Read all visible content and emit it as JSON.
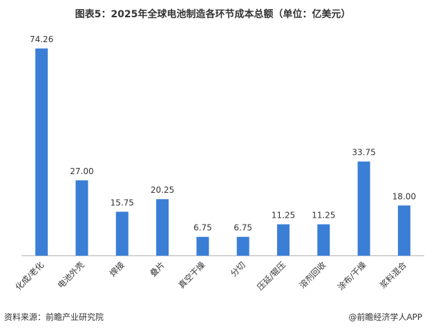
{
  "chart_data": {
    "type": "bar",
    "title": "图表5：2025年全球电池制造各环节成本总额（单位：亿美元）",
    "categories": [
      "化成/老化",
      "电池外壳",
      "焊接",
      "叠片",
      "真空干燥",
      "分切",
      "压延/辊压",
      "溶剂回收",
      "涂布/干燥",
      "浆料混合"
    ],
    "values": [
      74.26,
      27,
      15.75,
      20.25,
      6.75,
      6.75,
      11.25,
      11.25,
      33.75,
      18
    ],
    "value_labels": [
      "74.26",
      "27.00",
      "15.75",
      "20.25",
      "6.75",
      "6.75",
      "11.25",
      "11.25",
      "33.75",
      "18.00"
    ],
    "color": "#3b7ed6",
    "ylim": [
      0,
      80
    ],
    "source": "资料来源：前瞻产业研究院",
    "credit": "@前瞻经济学人APP"
  }
}
